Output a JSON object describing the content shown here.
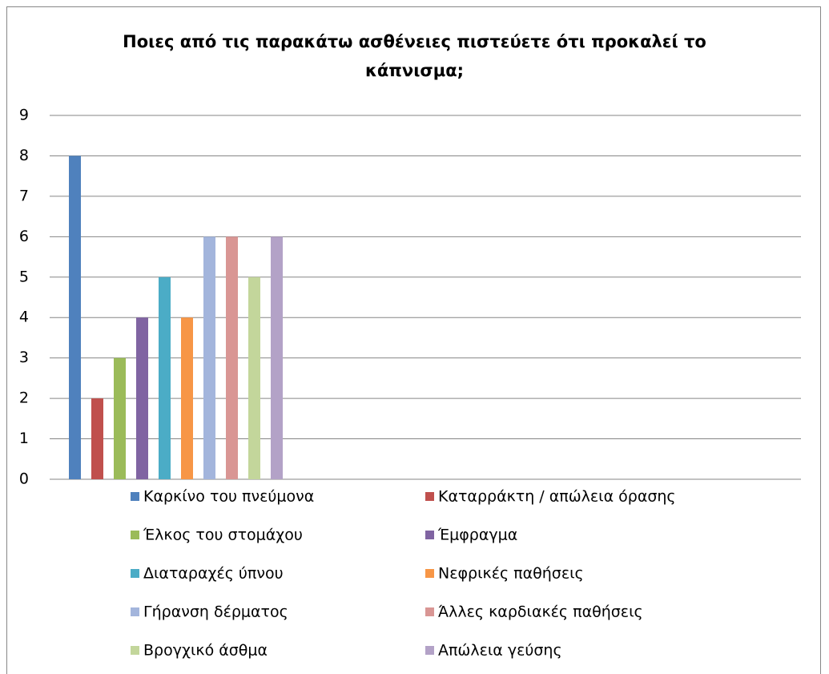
{
  "chart_data": {
    "type": "bar",
    "title": "Ποιες από τις παρακάτω ασθένειες πιστεύετε ότι προκαλεί το κάπνισμα;",
    "categories": [
      null
    ],
    "series": [
      {
        "name": "Καρκίνο του πνεύμονα",
        "color": "#4f81bd",
        "values": [
          8
        ]
      },
      {
        "name": "Καταρράκτη / απώλεια όρασης",
        "color": "#c0504d",
        "values": [
          2
        ]
      },
      {
        "name": "Έλκος του στομάχου",
        "color": "#9bbb59",
        "values": [
          3
        ]
      },
      {
        "name": "Έμφραγμα",
        "color": "#8064a2",
        "values": [
          4
        ]
      },
      {
        "name": "Διαταραχές ύπνου",
        "color": "#4bacc6",
        "values": [
          5
        ]
      },
      {
        "name": "Νεφρικές παθήσεις",
        "color": "#f79646",
        "values": [
          4
        ]
      },
      {
        "name": "Γήρανση δέρματος",
        "color": "#a3b5dc",
        "values": [
          6
        ]
      },
      {
        "name": "Άλλες καρδιακές παθήσεις",
        "color": "#d99694",
        "values": [
          6
        ]
      },
      {
        "name": "Βρογχικό άσθμα",
        "color": "#c3d69b",
        "values": [
          5
        ]
      },
      {
        "name": "Απώλεια γεύσης",
        "color": "#b3a2c7",
        "values": [
          6
        ]
      }
    ],
    "ylim": [
      0,
      9
    ],
    "yticks": [
      0,
      1,
      2,
      3,
      4,
      5,
      6,
      7,
      8,
      9
    ],
    "grid": true,
    "legend": "bottom"
  }
}
